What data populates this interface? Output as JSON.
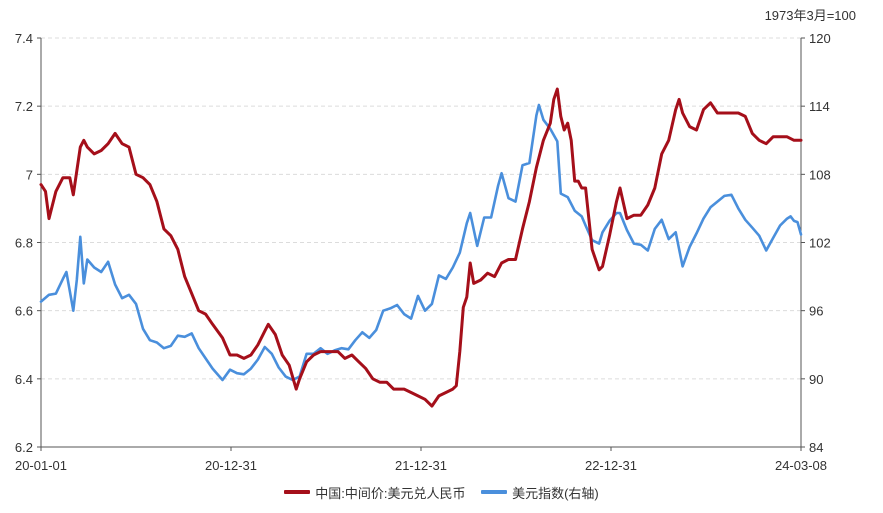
{
  "chart_data": {
    "type": "line",
    "unit_note": "1973年3月=100",
    "x_ticks": [
      "20-01-01",
      "20-12-31",
      "21-12-31",
      "22-12-31",
      "24-03-08"
    ],
    "x_range": [
      "2020-01-01",
      "2024-03-08"
    ],
    "y_left": {
      "ticks": [
        "6.2",
        "6.4",
        "6.6",
        "6.8",
        "7",
        "7.2",
        "7.4"
      ],
      "range": [
        6.2,
        7.4
      ]
    },
    "y_right": {
      "ticks": [
        "84",
        "90",
        "96",
        "102",
        "108",
        "114",
        "120"
      ],
      "range": [
        84,
        120
      ]
    },
    "grid": true,
    "legend_position": "bottom",
    "series": [
      {
        "name": "中国:中间价:美元兑人民币",
        "axis": "left",
        "color": "#A50F1A",
        "points": [
          [
            "2020-01-01",
            6.97
          ],
          [
            "2020-01-10",
            6.95
          ],
          [
            "2020-01-17",
            6.87
          ],
          [
            "2020-01-31",
            6.95
          ],
          [
            "2020-02-14",
            6.99
          ],
          [
            "2020-02-28",
            6.99
          ],
          [
            "2020-03-06",
            6.94
          ],
          [
            "2020-03-13",
            7.01
          ],
          [
            "2020-03-20",
            7.08
          ],
          [
            "2020-03-27",
            7.1
          ],
          [
            "2020-04-03",
            7.08
          ],
          [
            "2020-04-17",
            7.06
          ],
          [
            "2020-05-01",
            7.07
          ],
          [
            "2020-05-15",
            7.09
          ],
          [
            "2020-05-29",
            7.12
          ],
          [
            "2020-06-12",
            7.09
          ],
          [
            "2020-06-26",
            7.08
          ],
          [
            "2020-07-10",
            7.0
          ],
          [
            "2020-07-24",
            6.99
          ],
          [
            "2020-08-07",
            6.97
          ],
          [
            "2020-08-21",
            6.92
          ],
          [
            "2020-09-04",
            6.84
          ],
          [
            "2020-09-18",
            6.82
          ],
          [
            "2020-10-02",
            6.78
          ],
          [
            "2020-10-16",
            6.7
          ],
          [
            "2020-10-30",
            6.65
          ],
          [
            "2020-11-13",
            6.6
          ],
          [
            "2020-11-27",
            6.59
          ],
          [
            "2020-12-11",
            6.56
          ],
          [
            "2020-12-31",
            6.52
          ],
          [
            "2021-01-15",
            6.47
          ],
          [
            "2021-01-29",
            6.47
          ],
          [
            "2021-02-12",
            6.46
          ],
          [
            "2021-02-26",
            6.47
          ],
          [
            "2021-03-12",
            6.5
          ],
          [
            "2021-03-26",
            6.54
          ],
          [
            "2021-04-02",
            6.56
          ],
          [
            "2021-04-16",
            6.53
          ],
          [
            "2021-04-30",
            6.47
          ],
          [
            "2021-05-14",
            6.44
          ],
          [
            "2021-05-28",
            6.37
          ],
          [
            "2021-06-04",
            6.4
          ],
          [
            "2021-06-18",
            6.45
          ],
          [
            "2021-07-02",
            6.47
          ],
          [
            "2021-07-16",
            6.48
          ],
          [
            "2021-08-06",
            6.48
          ],
          [
            "2021-08-20",
            6.48
          ],
          [
            "2021-09-03",
            6.46
          ],
          [
            "2021-09-17",
            6.47
          ],
          [
            "2021-10-01",
            6.45
          ],
          [
            "2021-10-15",
            6.43
          ],
          [
            "2021-10-29",
            6.4
          ],
          [
            "2021-11-12",
            6.39
          ],
          [
            "2021-11-26",
            6.39
          ],
          [
            "2021-12-10",
            6.37
          ],
          [
            "2021-12-31",
            6.37
          ],
          [
            "2022-01-14",
            6.36
          ],
          [
            "2022-01-28",
            6.35
          ],
          [
            "2022-02-11",
            6.34
          ],
          [
            "2022-02-25",
            6.32
          ],
          [
            "2022-03-11",
            6.35
          ],
          [
            "2022-03-25",
            6.36
          ],
          [
            "2022-04-08",
            6.37
          ],
          [
            "2022-04-15",
            6.38
          ],
          [
            "2022-04-22",
            6.48
          ],
          [
            "2022-04-29",
            6.61
          ],
          [
            "2022-05-06",
            6.64
          ],
          [
            "2022-05-13",
            6.74
          ],
          [
            "2022-05-20",
            6.68
          ],
          [
            "2022-06-03",
            6.69
          ],
          [
            "2022-06-17",
            6.71
          ],
          [
            "2022-07-01",
            6.7
          ],
          [
            "2022-07-15",
            6.74
          ],
          [
            "2022-07-29",
            6.75
          ],
          [
            "2022-08-12",
            6.75
          ],
          [
            "2022-08-26",
            6.84
          ],
          [
            "2022-09-09",
            6.92
          ],
          [
            "2022-09-23",
            7.02
          ],
          [
            "2022-10-07",
            7.1
          ],
          [
            "2022-10-21",
            7.15
          ],
          [
            "2022-10-28",
            7.22
          ],
          [
            "2022-11-04",
            7.25
          ],
          [
            "2022-11-11",
            7.17
          ],
          [
            "2022-11-18",
            7.13
          ],
          [
            "2022-11-25",
            7.15
          ],
          [
            "2022-12-02",
            7.1
          ],
          [
            "2022-12-09",
            6.98
          ],
          [
            "2022-12-16",
            6.98
          ],
          [
            "2022-12-23",
            6.96
          ],
          [
            "2022-12-31",
            6.96
          ],
          [
            "2023-01-13",
            6.78
          ],
          [
            "2023-01-20",
            6.75
          ],
          [
            "2023-01-27",
            6.72
          ],
          [
            "2023-02-03",
            6.73
          ],
          [
            "2023-02-17",
            6.82
          ],
          [
            "2023-03-03",
            6.92
          ],
          [
            "2023-03-10",
            6.96
          ],
          [
            "2023-03-24",
            6.87
          ],
          [
            "2023-04-07",
            6.88
          ],
          [
            "2023-04-21",
            6.88
          ],
          [
            "2023-05-05",
            6.91
          ],
          [
            "2023-05-19",
            6.96
          ],
          [
            "2023-06-02",
            7.06
          ],
          [
            "2023-06-16",
            7.1
          ],
          [
            "2023-06-30",
            7.19
          ],
          [
            "2023-07-07",
            7.22
          ],
          [
            "2023-07-14",
            7.18
          ],
          [
            "2023-07-28",
            7.14
          ],
          [
            "2023-08-11",
            7.13
          ],
          [
            "2023-08-25",
            7.19
          ],
          [
            "2023-09-01",
            7.2
          ],
          [
            "2023-09-08",
            7.21
          ],
          [
            "2023-09-22",
            7.18
          ],
          [
            "2023-10-06",
            7.18
          ],
          [
            "2023-10-20",
            7.18
          ],
          [
            "2023-11-03",
            7.18
          ],
          [
            "2023-11-17",
            7.17
          ],
          [
            "2023-12-01",
            7.12
          ],
          [
            "2023-12-15",
            7.1
          ],
          [
            "2023-12-29",
            7.09
          ],
          [
            "2024-01-12",
            7.11
          ],
          [
            "2024-01-26",
            7.11
          ],
          [
            "2024-02-09",
            7.11
          ],
          [
            "2024-02-23",
            7.1
          ],
          [
            "2024-03-08",
            7.1
          ]
        ]
      },
      {
        "name": "美元指数(右轴)",
        "axis": "right",
        "color": "#4A8FDC",
        "points": [
          [
            "2020-01-01",
            96.8
          ],
          [
            "2020-01-17",
            97.4
          ],
          [
            "2020-01-31",
            97.5
          ],
          [
            "2020-02-14",
            98.8
          ],
          [
            "2020-02-21",
            99.4
          ],
          [
            "2020-03-06",
            96.0
          ],
          [
            "2020-03-13",
            98.7
          ],
          [
            "2020-03-20",
            102.5
          ],
          [
            "2020-03-27",
            98.4
          ],
          [
            "2020-04-03",
            100.5
          ],
          [
            "2020-04-17",
            99.8
          ],
          [
            "2020-05-01",
            99.4
          ],
          [
            "2020-05-15",
            100.3
          ],
          [
            "2020-05-29",
            98.3
          ],
          [
            "2020-06-12",
            97.1
          ],
          [
            "2020-06-26",
            97.4
          ],
          [
            "2020-07-10",
            96.6
          ],
          [
            "2020-07-24",
            94.4
          ],
          [
            "2020-08-07",
            93.4
          ],
          [
            "2020-08-21",
            93.2
          ],
          [
            "2020-09-04",
            92.7
          ],
          [
            "2020-09-18",
            92.9
          ],
          [
            "2020-10-02",
            93.8
          ],
          [
            "2020-10-16",
            93.7
          ],
          [
            "2020-10-30",
            94.0
          ],
          [
            "2020-11-13",
            92.7
          ],
          [
            "2020-11-27",
            91.8
          ],
          [
            "2020-12-11",
            90.9
          ],
          [
            "2020-12-31",
            89.9
          ],
          [
            "2021-01-15",
            90.8
          ],
          [
            "2021-01-29",
            90.5
          ],
          [
            "2021-02-12",
            90.4
          ],
          [
            "2021-02-26",
            90.9
          ],
          [
            "2021-03-12",
            91.7
          ],
          [
            "2021-03-26",
            92.8
          ],
          [
            "2021-04-09",
            92.2
          ],
          [
            "2021-04-23",
            91.0
          ],
          [
            "2021-05-07",
            90.2
          ],
          [
            "2021-05-21",
            89.9
          ],
          [
            "2021-06-04",
            90.2
          ],
          [
            "2021-06-18",
            92.2
          ],
          [
            "2021-07-02",
            92.2
          ],
          [
            "2021-07-16",
            92.7
          ],
          [
            "2021-07-30",
            92.2
          ],
          [
            "2021-08-13",
            92.5
          ],
          [
            "2021-08-27",
            92.7
          ],
          [
            "2021-09-10",
            92.6
          ],
          [
            "2021-09-24",
            93.4
          ],
          [
            "2021-10-08",
            94.1
          ],
          [
            "2021-10-22",
            93.6
          ],
          [
            "2021-11-05",
            94.3
          ],
          [
            "2021-11-19",
            96.0
          ],
          [
            "2021-12-03",
            96.2
          ],
          [
            "2021-12-17",
            96.5
          ],
          [
            "2021-12-31",
            95.7
          ],
          [
            "2022-01-14",
            95.3
          ],
          [
            "2022-01-28",
            97.3
          ],
          [
            "2022-02-11",
            96.0
          ],
          [
            "2022-02-25",
            96.6
          ],
          [
            "2022-03-11",
            99.1
          ],
          [
            "2022-03-25",
            98.8
          ],
          [
            "2022-04-08",
            99.8
          ],
          [
            "2022-04-22",
            101.1
          ],
          [
            "2022-05-06",
            103.7
          ],
          [
            "2022-05-13",
            104.6
          ],
          [
            "2022-05-27",
            101.7
          ],
          [
            "2022-06-10",
            104.2
          ],
          [
            "2022-06-24",
            104.2
          ],
          [
            "2022-07-08",
            107.0
          ],
          [
            "2022-07-15",
            108.1
          ],
          [
            "2022-07-29",
            105.9
          ],
          [
            "2022-08-12",
            105.6
          ],
          [
            "2022-08-26",
            108.8
          ],
          [
            "2022-09-09",
            109.0
          ],
          [
            "2022-09-23",
            113.2
          ],
          [
            "2022-09-28",
            114.1
          ],
          [
            "2022-10-07",
            112.8
          ],
          [
            "2022-10-21",
            112.0
          ],
          [
            "2022-11-04",
            110.9
          ],
          [
            "2022-11-11",
            106.3
          ],
          [
            "2022-11-25",
            106.0
          ],
          [
            "2022-12-09",
            104.8
          ],
          [
            "2022-12-23",
            104.3
          ],
          [
            "2022-12-31",
            103.5
          ],
          [
            "2023-01-13",
            102.2
          ],
          [
            "2023-01-27",
            101.9
          ],
          [
            "2023-02-03",
            102.9
          ],
          [
            "2023-02-17",
            103.9
          ],
          [
            "2023-03-03",
            104.6
          ],
          [
            "2023-03-10",
            104.6
          ],
          [
            "2023-03-24",
            103.1
          ],
          [
            "2023-04-07",
            101.9
          ],
          [
            "2023-04-21",
            101.8
          ],
          [
            "2023-05-05",
            101.3
          ],
          [
            "2023-05-19",
            103.2
          ],
          [
            "2023-06-02",
            104.0
          ],
          [
            "2023-06-16",
            102.3
          ],
          [
            "2023-06-30",
            102.9
          ],
          [
            "2023-07-14",
            99.9
          ],
          [
            "2023-07-28",
            101.6
          ],
          [
            "2023-08-11",
            102.8
          ],
          [
            "2023-08-25",
            104.1
          ],
          [
            "2023-09-08",
            105.1
          ],
          [
            "2023-09-22",
            105.6
          ],
          [
            "2023-10-06",
            106.1
          ],
          [
            "2023-10-20",
            106.2
          ],
          [
            "2023-11-03",
            105.0
          ],
          [
            "2023-11-17",
            104.0
          ],
          [
            "2023-12-01",
            103.3
          ],
          [
            "2023-12-15",
            102.6
          ],
          [
            "2023-12-29",
            101.3
          ],
          [
            "2024-01-12",
            102.4
          ],
          [
            "2024-01-26",
            103.5
          ],
          [
            "2024-02-09",
            104.1
          ],
          [
            "2024-02-16",
            104.3
          ],
          [
            "2024-02-23",
            103.9
          ],
          [
            "2024-03-01",
            103.8
          ],
          [
            "2024-03-08",
            102.7
          ]
        ]
      }
    ]
  }
}
